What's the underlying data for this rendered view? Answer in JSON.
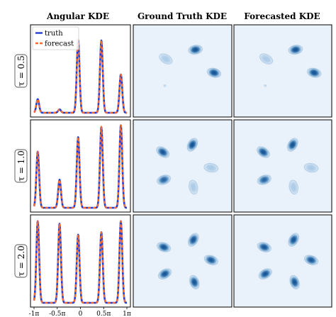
{
  "chart_data": {
    "type": "line",
    "column_titles": [
      "Angular KDE",
      "Ground Truth KDE",
      "Forecasted KDE"
    ],
    "row_labels": [
      "τ = 0.5",
      "τ = 1.0",
      "τ = 2.0"
    ],
    "legend": [
      {
        "name": "truth",
        "color": "#1f3fd6",
        "style": "solid"
      },
      {
        "name": "forecast",
        "color": "#ff6b2e",
        "style": "dashed"
      }
    ],
    "x_ticks": [
      "-1π",
      "-0.5π",
      "0",
      "0.5π",
      "1π"
    ],
    "xlim": [
      -1,
      1
    ],
    "x_unit": "π",
    "ylim": [
      0,
      1
    ],
    "angular_kde": [
      {
        "peaks": [
          {
            "x": -0.92,
            "height": 0.16
          },
          {
            "x": -0.45,
            "height": 0.04
          },
          {
            "x": -0.05,
            "height": 0.86
          },
          {
            "x": 0.45,
            "height": 0.85
          },
          {
            "x": 0.87,
            "height": 0.45
          }
        ]
      },
      {
        "peaks": [
          {
            "x": -0.92,
            "height": 0.66
          },
          {
            "x": -0.45,
            "height": 0.33
          },
          {
            "x": -0.05,
            "height": 0.83
          },
          {
            "x": 0.45,
            "height": 0.95
          },
          {
            "x": 0.87,
            "height": 0.97
          }
        ]
      },
      {
        "peaks": [
          {
            "x": -0.92,
            "height": 0.96
          },
          {
            "x": -0.45,
            "height": 0.93
          },
          {
            "x": -0.05,
            "height": 0.8
          },
          {
            "x": 0.45,
            "height": 0.83
          },
          {
            "x": 0.87,
            "height": 0.96
          }
        ]
      }
    ],
    "kde_maps": {
      "colormap": [
        "#e9f1fa",
        "#0b4a8c"
      ],
      "ground_truth": [
        {
          "blobs": [
            {
              "x": 0.33,
              "y": 0.37,
              "intensity": 0.25,
              "angle": 30
            },
            {
              "x": 0.63,
              "y": 0.27,
              "intensity": 0.95,
              "angle": -10
            },
            {
              "x": 0.82,
              "y": 0.52,
              "intensity": 0.9,
              "angle": 15
            },
            {
              "x": 0.32,
              "y": 0.66,
              "intensity": 0.08,
              "angle": 0
            }
          ]
        },
        {
          "blobs": [
            {
              "x": 0.3,
              "y": 0.35,
              "intensity": 0.85,
              "angle": 35
            },
            {
              "x": 0.6,
              "y": 0.27,
              "intensity": 0.9,
              "angle": -60
            },
            {
              "x": 0.79,
              "y": 0.52,
              "intensity": 0.35,
              "angle": 10
            },
            {
              "x": 0.31,
              "y": 0.65,
              "intensity": 0.6,
              "angle": -20
            },
            {
              "x": 0.61,
              "y": 0.73,
              "intensity": 0.25,
              "angle": 80
            }
          ]
        },
        {
          "blobs": [
            {
              "x": 0.31,
              "y": 0.35,
              "intensity": 0.85,
              "angle": 20
            },
            {
              "x": 0.61,
              "y": 0.27,
              "intensity": 0.85,
              "angle": -60
            },
            {
              "x": 0.79,
              "y": 0.49,
              "intensity": 0.8,
              "angle": 20
            },
            {
              "x": 0.32,
              "y": 0.64,
              "intensity": 0.85,
              "angle": -30
            },
            {
              "x": 0.62,
              "y": 0.73,
              "intensity": 0.85,
              "angle": 70
            }
          ]
        }
      ],
      "forecasted": [
        {
          "blobs": [
            {
              "x": 0.33,
              "y": 0.37,
              "intensity": 0.25,
              "angle": 30
            },
            {
              "x": 0.63,
              "y": 0.27,
              "intensity": 0.95,
              "angle": -10
            },
            {
              "x": 0.82,
              "y": 0.52,
              "intensity": 0.9,
              "angle": 15
            },
            {
              "x": 0.32,
              "y": 0.66,
              "intensity": 0.08,
              "angle": 0
            }
          ]
        },
        {
          "blobs": [
            {
              "x": 0.3,
              "y": 0.35,
              "intensity": 0.85,
              "angle": 35
            },
            {
              "x": 0.6,
              "y": 0.27,
              "intensity": 0.9,
              "angle": -60
            },
            {
              "x": 0.79,
              "y": 0.52,
              "intensity": 0.35,
              "angle": 10
            },
            {
              "x": 0.31,
              "y": 0.65,
              "intensity": 0.6,
              "angle": -20
            },
            {
              "x": 0.61,
              "y": 0.73,
              "intensity": 0.25,
              "angle": 80
            }
          ]
        },
        {
          "blobs": [
            {
              "x": 0.31,
              "y": 0.35,
              "intensity": 0.85,
              "angle": 20
            },
            {
              "x": 0.61,
              "y": 0.27,
              "intensity": 0.85,
              "angle": -60
            },
            {
              "x": 0.79,
              "y": 0.49,
              "intensity": 0.8,
              "angle": 20
            },
            {
              "x": 0.32,
              "y": 0.64,
              "intensity": 0.85,
              "angle": -30
            },
            {
              "x": 0.62,
              "y": 0.73,
              "intensity": 0.85,
              "angle": 70
            }
          ]
        }
      ]
    }
  }
}
